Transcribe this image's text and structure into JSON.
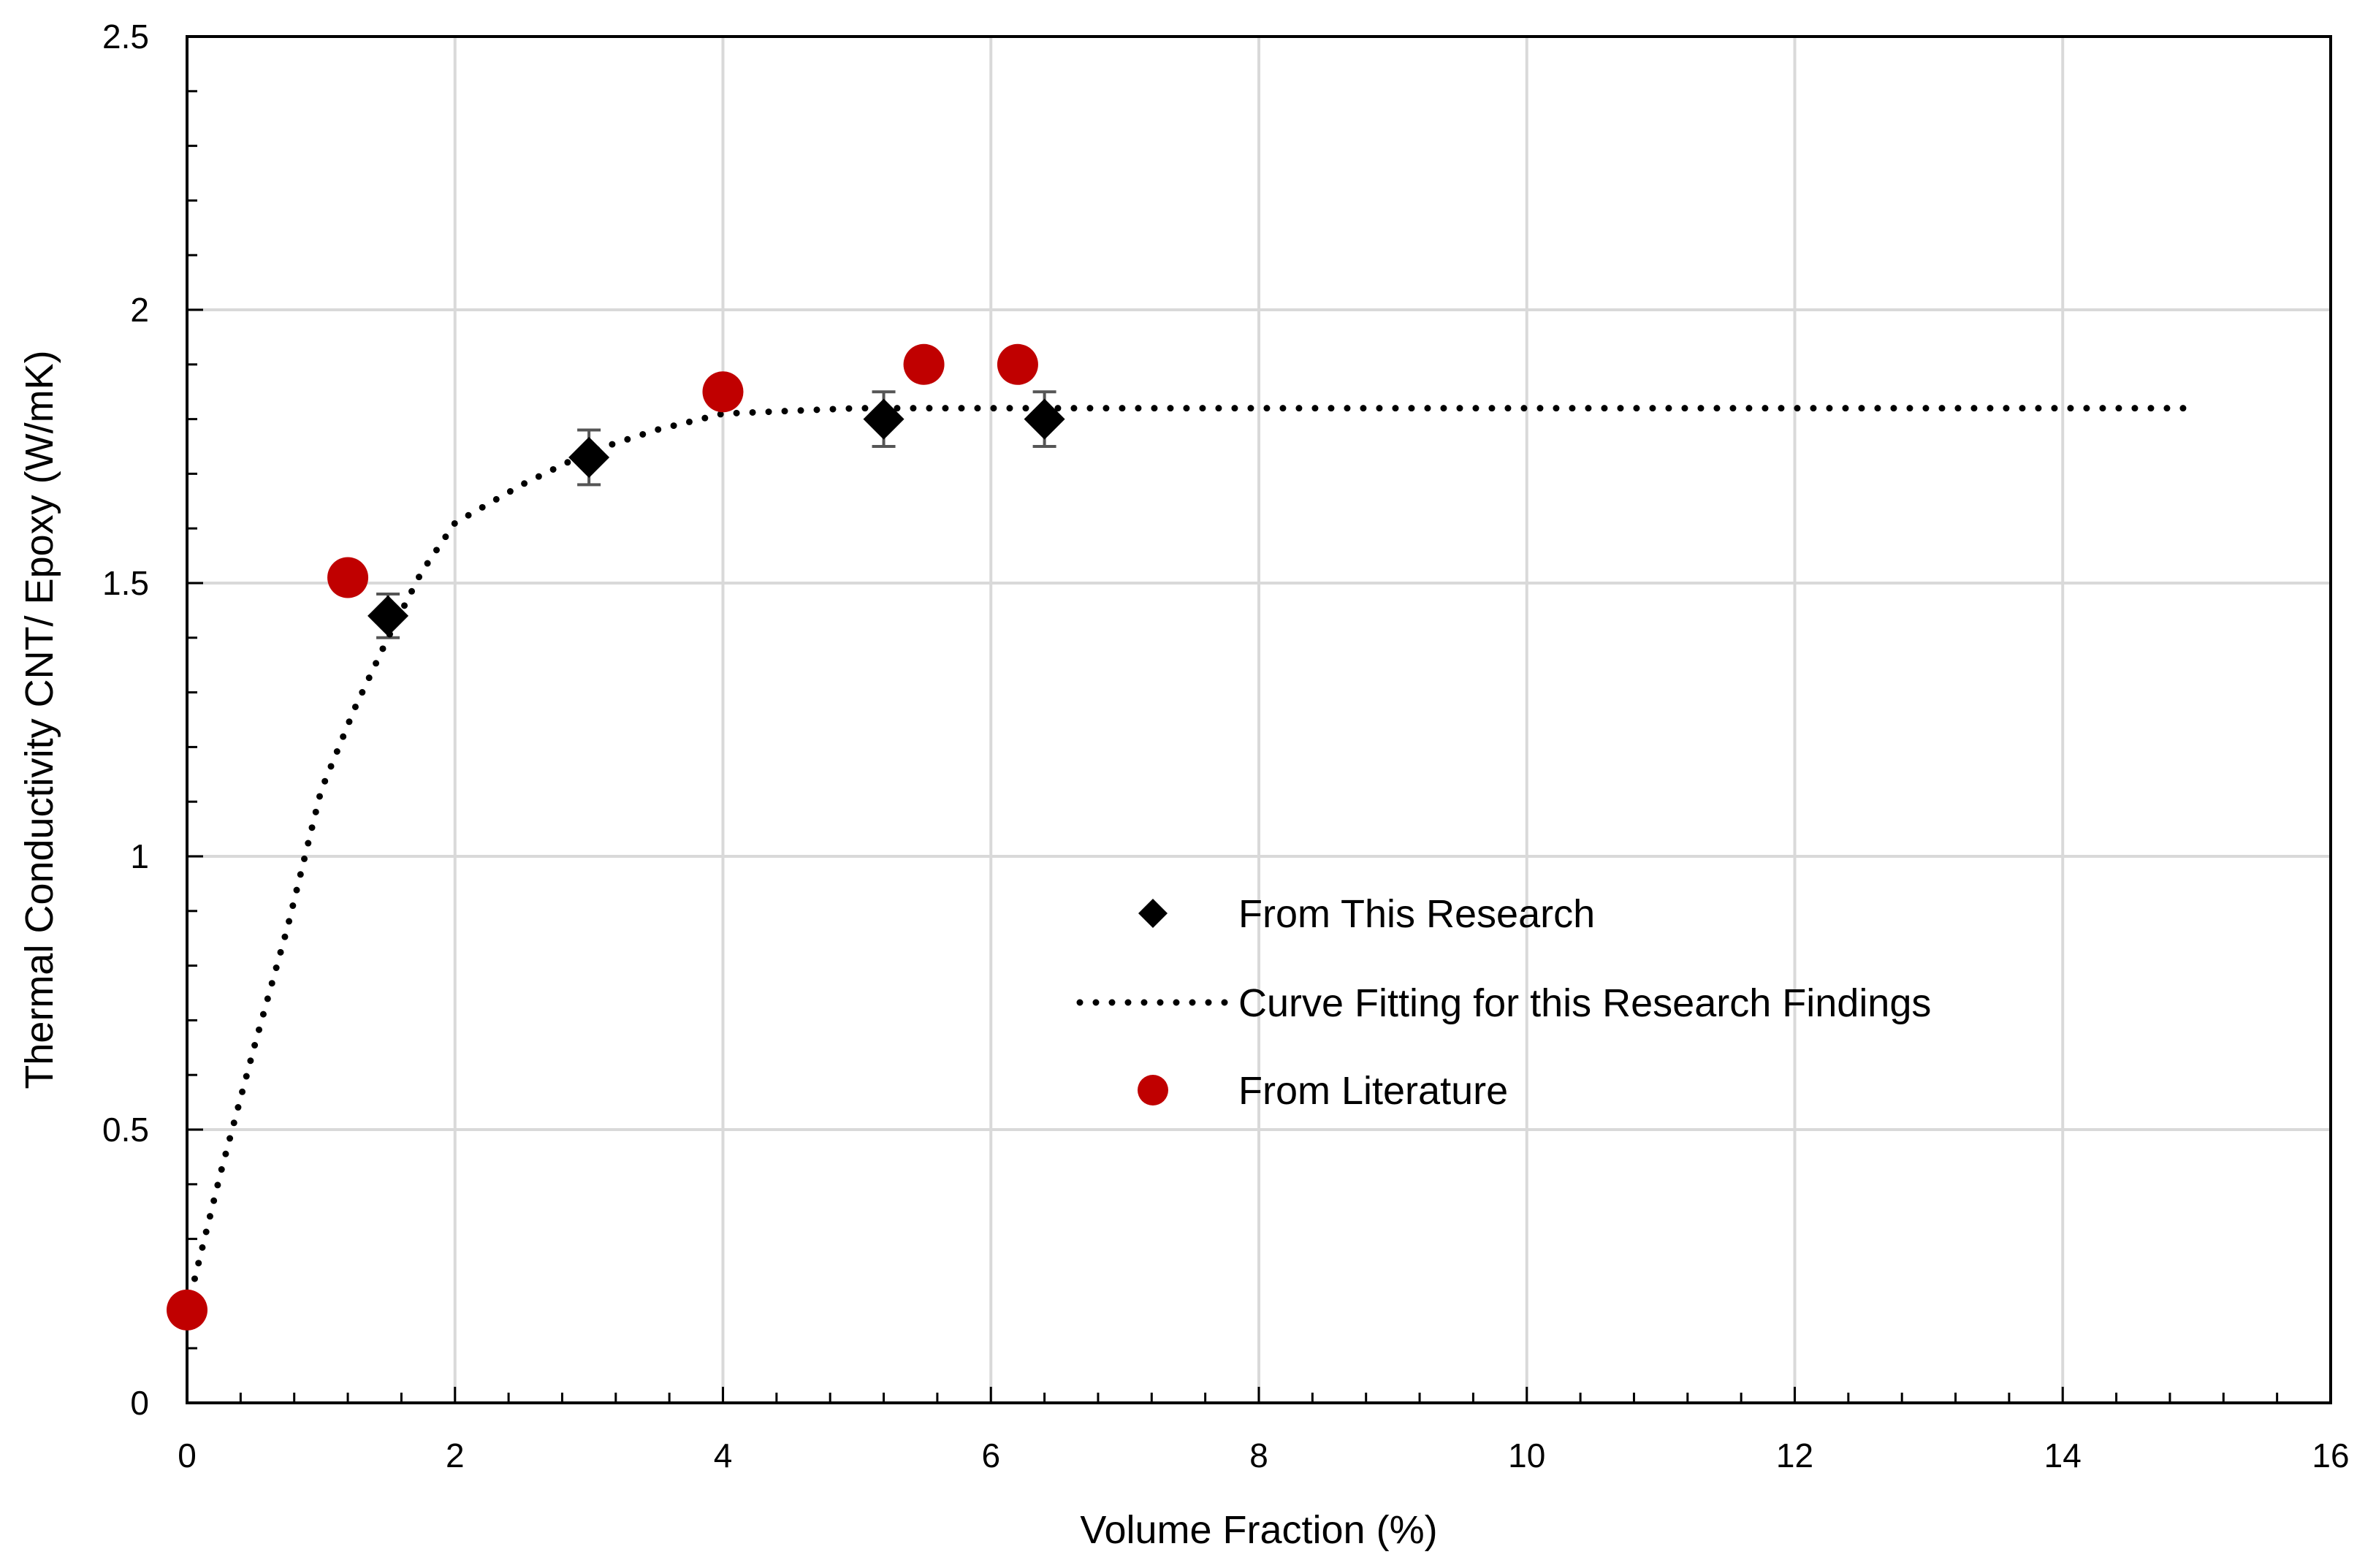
{
  "chart_data": {
    "type": "scatter",
    "xlabel": "Volume Fraction (%)",
    "ylabel": "Thermal Conductivity CNT/ Epoxy (W/mK)",
    "xlim": [
      0,
      16
    ],
    "ylim": [
      0,
      2.5
    ],
    "x_ticks": [
      0,
      2,
      4,
      6,
      8,
      10,
      12,
      14,
      16
    ],
    "y_ticks": [
      0,
      0.5,
      1,
      1.5,
      2,
      2.5
    ],
    "x_tick_labels": [
      "0",
      "2",
      "4",
      "6",
      "8",
      "10",
      "12",
      "14",
      "16"
    ],
    "y_tick_labels": [
      "0",
      "0.5",
      "1",
      "1.5",
      "2",
      "2.5"
    ],
    "grid": true,
    "legend_position": "center-right",
    "series": [
      {
        "name": "From This Research",
        "marker": "diamond",
        "color": "#000000",
        "points": [
          {
            "x": 1.5,
            "y": 1.44,
            "err": 0.04
          },
          {
            "x": 3.0,
            "y": 1.73,
            "err": 0.05
          },
          {
            "x": 5.2,
            "y": 1.8,
            "err": 0.05
          },
          {
            "x": 6.4,
            "y": 1.8,
            "err": 0.05
          }
        ]
      },
      {
        "name": "Curve Fitting for this Research Findings",
        "style": "dotted-line",
        "color": "#000000",
        "points": [
          {
            "x": 0.0,
            "y": 0.17
          },
          {
            "x": 0.25,
            "y": 0.42
          },
          {
            "x": 0.5,
            "y": 0.65
          },
          {
            "x": 0.75,
            "y": 0.87
          },
          {
            "x": 1.0,
            "y": 1.12
          },
          {
            "x": 1.25,
            "y": 1.27
          },
          {
            "x": 1.5,
            "y": 1.4
          },
          {
            "x": 1.75,
            "y": 1.52
          },
          {
            "x": 2.0,
            "y": 1.61
          },
          {
            "x": 2.5,
            "y": 1.68
          },
          {
            "x": 3.0,
            "y": 1.74
          },
          {
            "x": 3.5,
            "y": 1.78
          },
          {
            "x": 4.0,
            "y": 1.81
          },
          {
            "x": 5.0,
            "y": 1.82
          },
          {
            "x": 6.0,
            "y": 1.82
          },
          {
            "x": 8.0,
            "y": 1.82
          },
          {
            "x": 10.0,
            "y": 1.82
          },
          {
            "x": 12.0,
            "y": 1.82
          },
          {
            "x": 14.9,
            "y": 1.82
          }
        ]
      },
      {
        "name": "From Literature",
        "marker": "circle",
        "color": "#c00000",
        "points": [
          {
            "x": 0.0,
            "y": 0.17
          },
          {
            "x": 1.2,
            "y": 1.51
          },
          {
            "x": 4.0,
            "y": 1.85
          },
          {
            "x": 5.5,
            "y": 1.9
          },
          {
            "x": 6.2,
            "y": 1.9
          }
        ]
      }
    ]
  }
}
